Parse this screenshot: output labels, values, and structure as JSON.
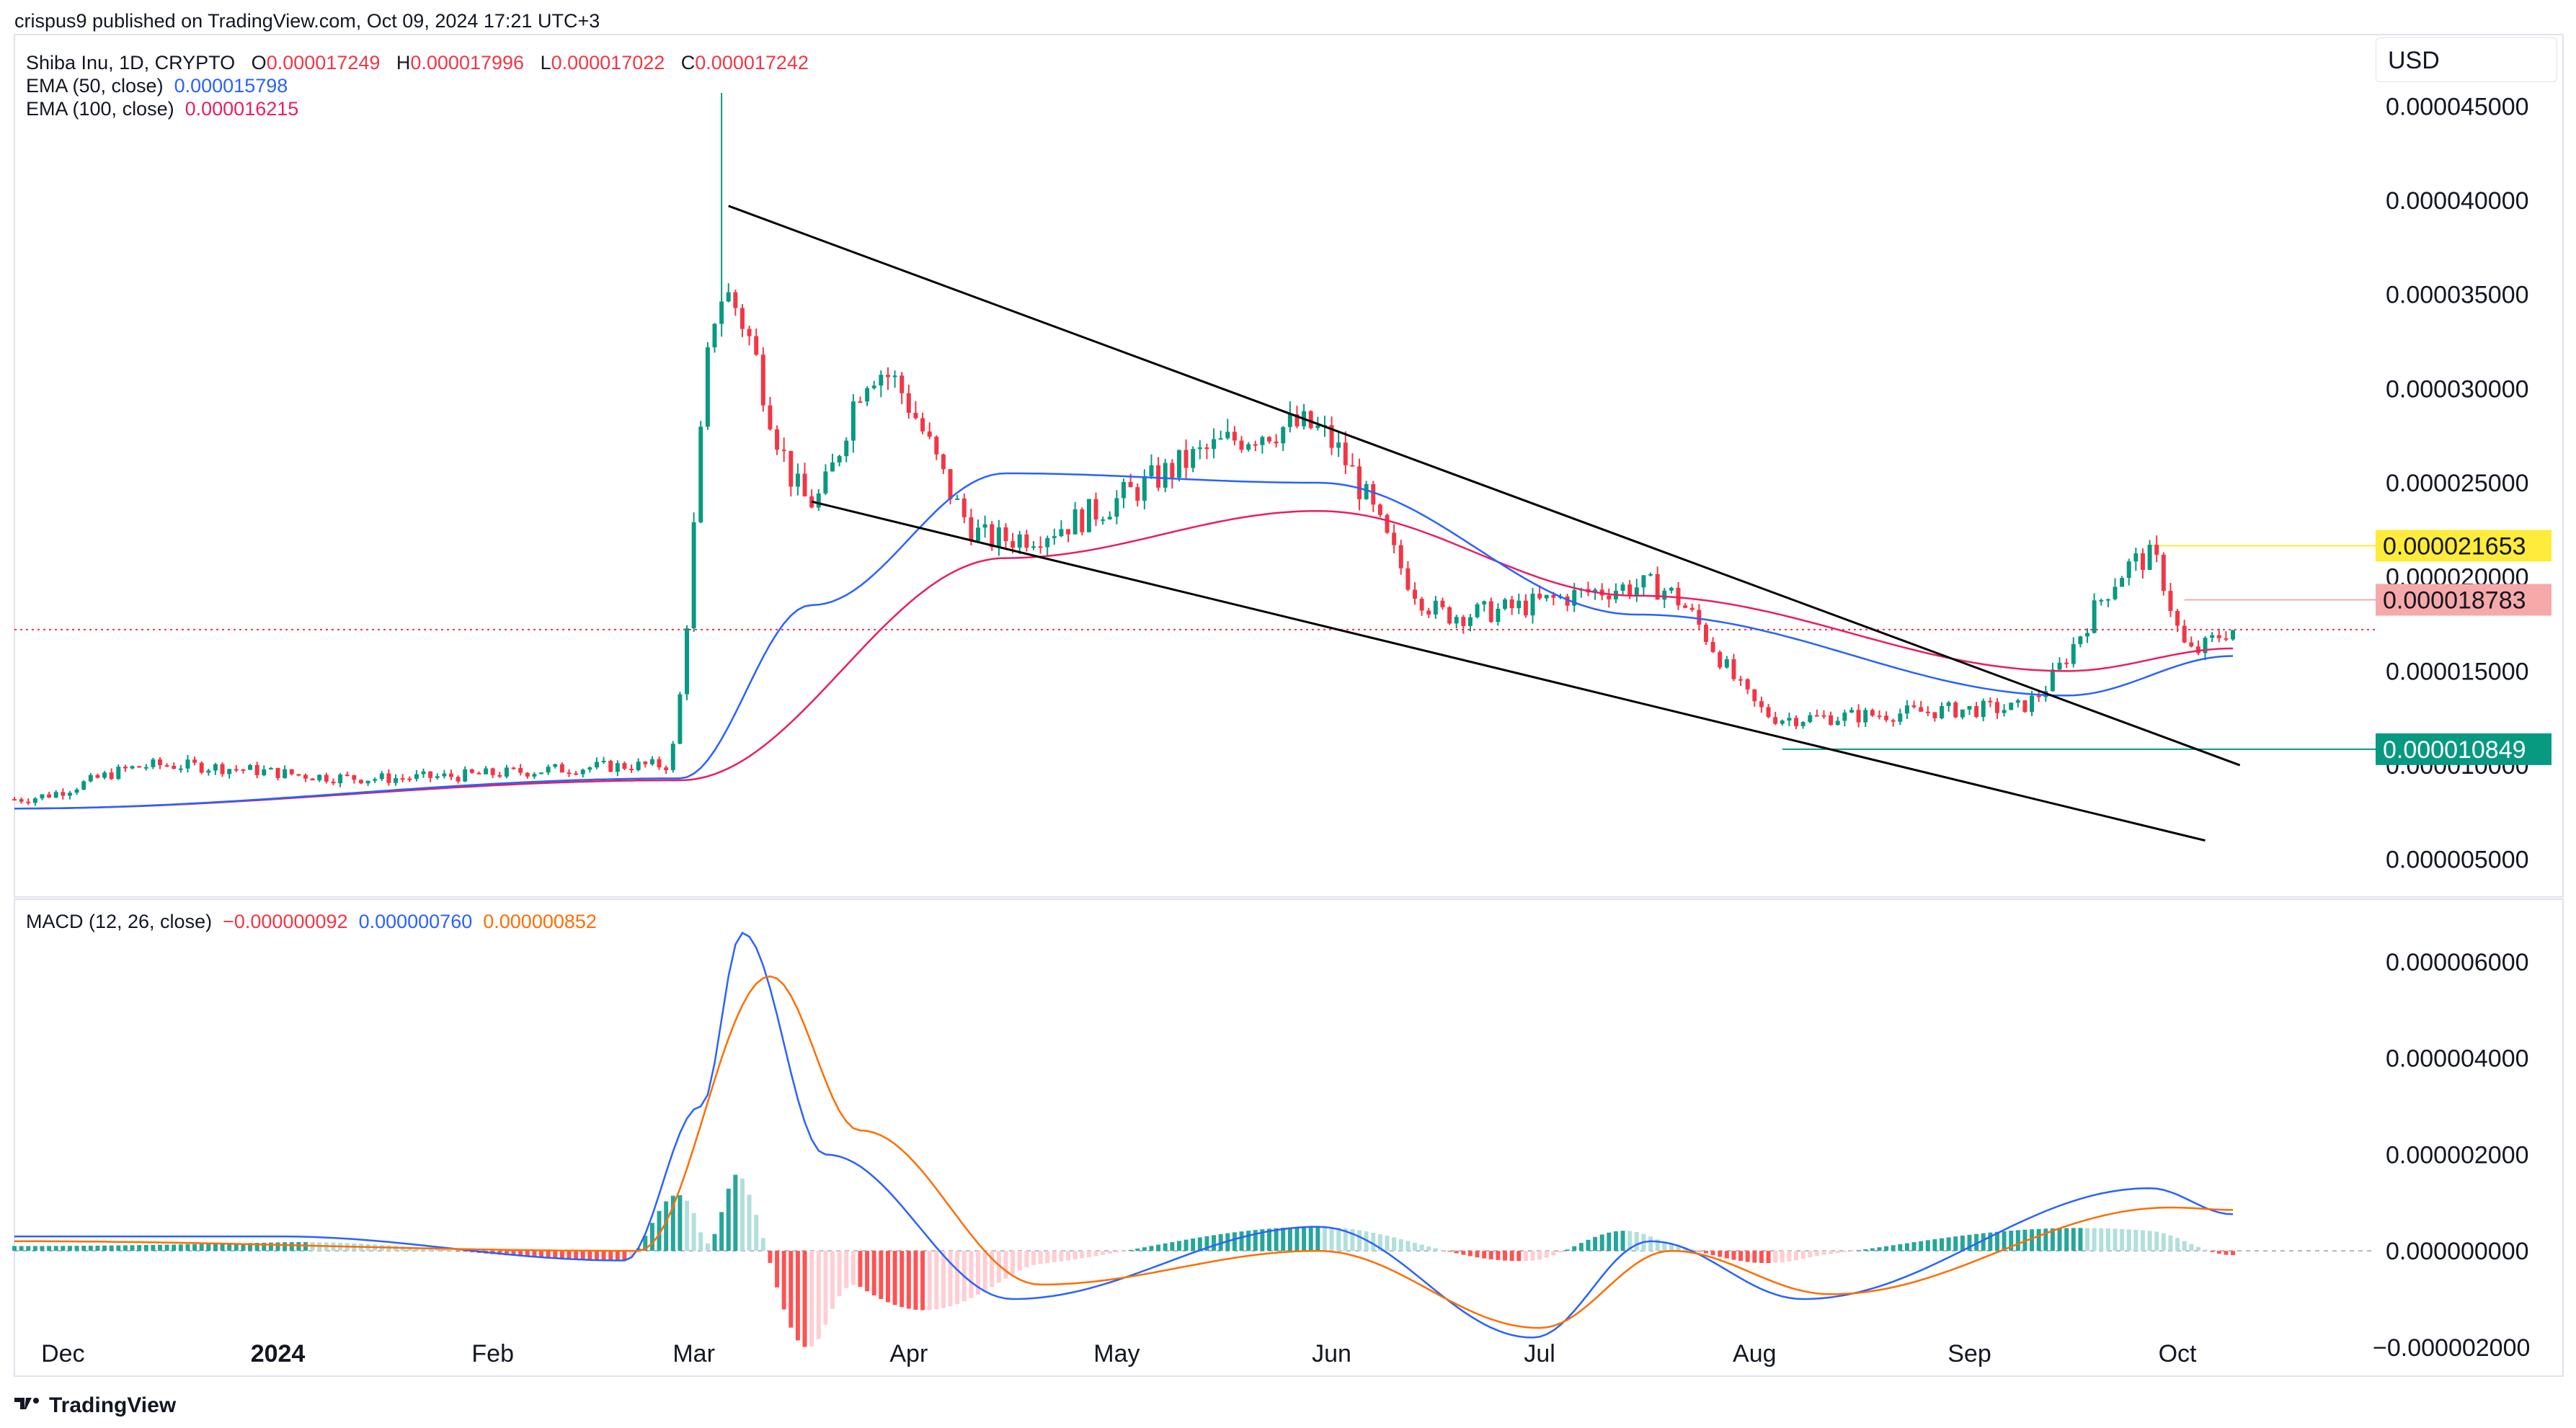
{
  "header": {
    "published": "crispus9 published on TradingView.com, Oct 09, 2024 17:21 UTC+3"
  },
  "legend": {
    "symbol": "Shiba Inu, 1D, CRYPTO",
    "o_label": "O",
    "o_value": "0.000017249",
    "h_label": "H",
    "h_value": "0.000017996",
    "l_label": "L",
    "l_value": "0.000017022",
    "c_label": "C",
    "c_value": "0.000017242",
    "ema50_label": "EMA (50, close)",
    "ema50_value": "0.000015798",
    "ema100_label": "EMA (100, close)",
    "ema100_value": "0.000016215",
    "macd_label": "MACD (12, 26, close)",
    "macd_hist": "−0.000000092",
    "macd_line": "0.000000760",
    "macd_signal": "0.000000852"
  },
  "currency": "USD",
  "footer_brand": "TradingView",
  "colors": {
    "up": "#089981",
    "down": "#f23645",
    "ema50": "#2962ff",
    "ema100": "#e91e63",
    "trend": "#000000",
    "macd": "#2962ff",
    "signal": "#ff6d00",
    "hist_up_strong": "#26a69a",
    "hist_up_weak": "#b2dfdb",
    "hist_down_strong": "#ff5252",
    "hist_down_weak": "#ffcdd2",
    "tag_yellow": "#ffeb3b",
    "tag_red": "#f7a9a9",
    "tag_green": "#089981"
  },
  "chart_data": [
    {
      "type": "candlestick",
      "title": "Shiba Inu, 1D, CRYPTO",
      "ylim": [
        3e-06,
        4.88e-05
      ],
      "y_ticks": [
        "0.000045000",
        "0.000040000",
        "0.000035000",
        "0.000030000",
        "0.000025000",
        "0.000020000",
        "0.000015000",
        "0.000010000",
        "0.000005000"
      ],
      "x_ticks": [
        "Dec",
        "2024",
        "Feb",
        "Mar",
        "Apr",
        "May",
        "Jun",
        "Jul",
        "Aug",
        "Sep",
        "Oct"
      ],
      "key_points": [
        {
          "date": "2023-11-24",
          "close": 8.2e-06
        },
        {
          "date": "2023-12-15",
          "close": 1e-05
        },
        {
          "date": "2024-01-15",
          "close": 9.3e-06
        },
        {
          "date": "2024-02-26",
          "close": 1e-05
        },
        {
          "date": "2024-03-05",
          "close": 3.5e-05
        },
        {
          "date": "2024-03-18",
          "close": 2.4e-05
        },
        {
          "date": "2024-03-27",
          "close": 3.1e-05
        },
        {
          "date": "2024-04-13",
          "close": 2.2e-05
        },
        {
          "date": "2024-05-28",
          "close": 2.8e-05
        },
        {
          "date": "2024-06-18",
          "close": 1.8e-05
        },
        {
          "date": "2024-07-17",
          "close": 1.95e-05
        },
        {
          "date": "2024-08-05",
          "close": 1.25e-05
        },
        {
          "date": "2024-09-07",
          "close": 1.3e-05
        },
        {
          "date": "2024-09-27",
          "close": 2.1e-05
        },
        {
          "date": "2024-10-03",
          "close": 1.6e-05
        },
        {
          "date": "2024-10-09",
          "close": 1.72e-05
        }
      ],
      "ema50_points": [
        {
          "date": "2023-11-24",
          "value": 7.7e-06
        },
        {
          "date": "2024-02-28",
          "value": 9.3e-06
        },
        {
          "date": "2024-03-18",
          "value": 1.85e-05
        },
        {
          "date": "2024-04-15",
          "value": 2.55e-05
        },
        {
          "date": "2024-05-30",
          "value": 2.5e-05
        },
        {
          "date": "2024-07-15",
          "value": 1.8e-05
        },
        {
          "date": "2024-09-15",
          "value": 1.37e-05
        },
        {
          "date": "2024-10-09",
          "value": 1.58e-05
        }
      ],
      "ema100_points": [
        {
          "date": "2023-11-24",
          "value": 7.7e-06
        },
        {
          "date": "2024-02-28",
          "value": 9.2e-06
        },
        {
          "date": "2024-04-15",
          "value": 2.1e-05
        },
        {
          "date": "2024-05-30",
          "value": 2.35e-05
        },
        {
          "date": "2024-07-15",
          "value": 1.9e-05
        },
        {
          "date": "2024-09-15",
          "value": 1.5e-05
        },
        {
          "date": "2024-10-09",
          "value": 1.62e-05
        }
      ],
      "spike_high": {
        "date": "2024-03-05",
        "value": 4.57e-05
      },
      "current_price": 1.72e-05,
      "levels": [
        {
          "label": "0.000021653",
          "value": 2.1653e-05,
          "color": "#ffeb3b"
        },
        {
          "label": "0.000018783",
          "value": 1.8783e-05,
          "color": "#f7a9a9"
        },
        {
          "label": "0.000010849",
          "value": 1.0849e-05,
          "color": "#089981"
        }
      ],
      "trendlines": [
        {
          "from": {
            "date": "2024-03-06",
            "value": 3.97e-05
          },
          "to": {
            "date": "2024-10-10",
            "value": 1e-05
          }
        },
        {
          "from": {
            "date": "2024-03-18",
            "value": 2.4e-05
          },
          "to": {
            "date": "2024-10-05",
            "value": 6e-06
          }
        }
      ]
    },
    {
      "type": "line",
      "title": "MACD (12, 26, close)",
      "ylim": [
        -2.6e-06,
        7.3e-06
      ],
      "y_ticks": [
        "0.000006000",
        "0.000004000",
        "0.000002000",
        "0.000000000",
        "−0.000002000"
      ],
      "series": [
        {
          "name": "",
          "points": [
            {
              "date": "2023-11-24",
              "value": 3e-07
            },
            {
              "date": "2024-01-01",
              "value": 3e-07
            },
            {
              "date": "2024-02-20",
              "value": -2e-07
            },
            {
              "date": "2024-03-02",
              "value": 3e-06
            },
            {
              "date": "2024-03-08",
              "value": 6.6e-06
            },
            {
              "date": "2024-03-20",
              "value": 2e-06
            },
            {
              "date": "2024-04-16",
              "value": -1e-06
            },
            {
              "date": "2024-05-30",
              "value": 5e-07
            },
            {
              "date": "2024-06-30",
              "value": -1.8e-06
            },
            {
              "date": "2024-07-17",
              "value": 2e-07
            },
            {
              "date": "2024-08-08",
              "value": -1e-06
            },
            {
              "date": "2024-09-27",
              "value": 1.3e-06
            },
            {
              "date": "2024-10-09",
              "value": 7.6e-07
            }
          ]
        },
        {
          "name": "",
          "points": [
            {
              "date": "2023-11-24",
              "value": 2e-07
            },
            {
              "date": "2024-02-22",
              "value": 0.0
            },
            {
              "date": "2024-03-12",
              "value": 5.7e-06
            },
            {
              "date": "2024-03-25",
              "value": 2.5e-06
            },
            {
              "date": "2024-04-20",
              "value": -7e-07
            },
            {
              "date": "2024-05-30",
              "value": 0.0
            },
            {
              "date": "2024-07-01",
              "value": -1.6e-06
            },
            {
              "date": "2024-07-20",
              "value": 0.0
            },
            {
              "date": "2024-08-12",
              "value": -9e-07
            },
            {
              "date": "2024-09-30",
              "value": 9e-07
            },
            {
              "date": "2024-10-09",
              "value": 8.5e-07
            }
          ]
        }
      ]
    }
  ]
}
